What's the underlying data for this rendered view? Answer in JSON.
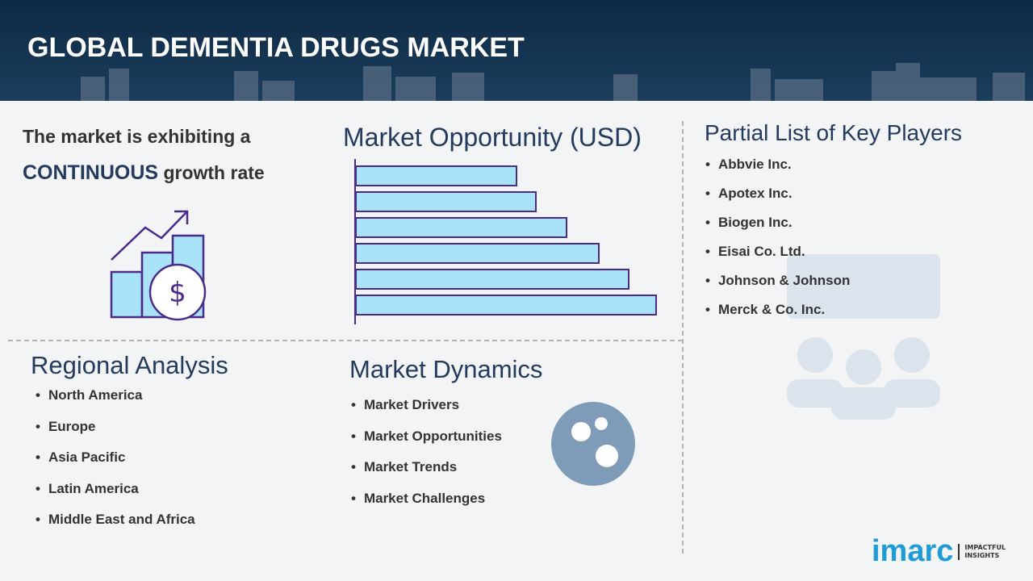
{
  "header": {
    "title": "GLOBAL DEMENTIA DRUGS MARKET"
  },
  "growth": {
    "line1": "The market is exhibiting a",
    "highlight": "CONTINUOUS",
    "rest": "growth rate"
  },
  "opportunity": {
    "title": "Market Opportunity (USD)"
  },
  "players": {
    "title": "Partial List of Key Players",
    "items": [
      "Abbvie Inc.",
      "Apotex Inc.",
      "Biogen Inc.",
      "Eisai Co. Ltd.",
      "Johnson & Johnson",
      "Merck & Co. Inc."
    ]
  },
  "regional": {
    "title": "Regional Analysis",
    "items": [
      "North America",
      "Europe",
      "Asia Pacific",
      "Latin America",
      "Middle East and Africa"
    ]
  },
  "dynamics": {
    "title": "Market Dynamics",
    "items": [
      "Market Drivers",
      "Market Opportunities",
      "Market Trends",
      "Market Challenges"
    ]
  },
  "logo": {
    "name": "imarc",
    "tagline1": "IMPACTFUL",
    "tagline2": "INSIGHTS"
  }
}
